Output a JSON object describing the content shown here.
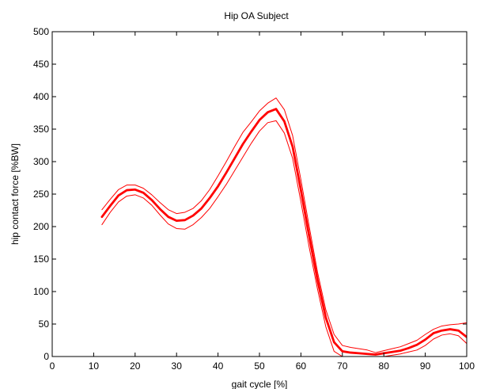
{
  "chart_data": {
    "type": "line",
    "title": "Hip OA Subject",
    "xlabel": "gait cycle [%]",
    "ylabel": "hip contact force [%BW]",
    "xlim": [
      0,
      100
    ],
    "ylim": [
      0,
      500
    ],
    "xticks": [
      0,
      10,
      20,
      30,
      40,
      50,
      60,
      70,
      80,
      90,
      100
    ],
    "yticks": [
      0,
      50,
      100,
      150,
      200,
      250,
      300,
      350,
      400,
      450,
      500
    ],
    "grid": false,
    "box": true,
    "line_color": "#ff0000",
    "series": [
      {
        "role": "mean",
        "x": [
          12,
          14,
          16,
          18,
          20,
          22,
          24,
          26,
          28,
          30,
          32,
          34,
          36,
          38,
          40,
          42,
          44,
          46,
          48,
          50,
          52,
          54,
          56,
          58,
          60,
          62,
          64,
          66,
          68,
          70,
          72,
          74,
          76,
          78,
          80,
          82,
          84,
          86,
          88,
          90,
          92,
          94,
          96,
          98,
          100
        ],
        "y": [
          215,
          232,
          248,
          256,
          257,
          252,
          241,
          227,
          215,
          209,
          210,
          217,
          228,
          244,
          262,
          283,
          305,
          327,
          346,
          364,
          376,
          381,
          362,
          323,
          256,
          185,
          118,
          60,
          22,
          8,
          6,
          5,
          4,
          3,
          5,
          7,
          9,
          13,
          18,
          26,
          36,
          40,
          42,
          40,
          30
        ]
      },
      {
        "role": "upper",
        "x": [
          12,
          14,
          16,
          18,
          20,
          22,
          24,
          26,
          28,
          30,
          32,
          34,
          36,
          38,
          40,
          42,
          44,
          46,
          48,
          50,
          52,
          54,
          56,
          58,
          60,
          62,
          64,
          66,
          68,
          70,
          72,
          74,
          76,
          78,
          80,
          82,
          84,
          86,
          88,
          90,
          92,
          94,
          96,
          98,
          100
        ],
        "y": [
          226,
          242,
          257,
          264,
          264,
          259,
          249,
          237,
          226,
          220,
          222,
          228,
          240,
          257,
          278,
          300,
          323,
          345,
          361,
          378,
          390,
          398,
          380,
          340,
          272,
          200,
          130,
          72,
          34,
          17,
          14,
          12,
          10,
          6,
          9,
          12,
          15,
          20,
          25,
          34,
          42,
          47,
          49,
          50,
          52
        ]
      },
      {
        "role": "lower",
        "x": [
          12,
          14,
          16,
          18,
          20,
          22,
          24,
          26,
          28,
          30,
          32,
          34,
          36,
          38,
          40,
          42,
          44,
          46,
          48,
          50,
          52,
          54,
          56,
          58,
          60,
          62,
          64,
          66,
          68,
          70,
          72,
          74,
          76,
          78,
          80,
          82,
          84,
          86,
          88,
          90,
          92,
          94,
          96,
          98,
          100
        ],
        "y": [
          203,
          222,
          238,
          247,
          249,
          244,
          233,
          218,
          204,
          197,
          196,
          203,
          214,
          228,
          246,
          265,
          286,
          307,
          328,
          347,
          360,
          363,
          344,
          305,
          238,
          168,
          104,
          46,
          8,
          0,
          0,
          0,
          0,
          0,
          0,
          2,
          4,
          7,
          10,
          17,
          27,
          33,
          35,
          32,
          20
        ]
      }
    ]
  }
}
